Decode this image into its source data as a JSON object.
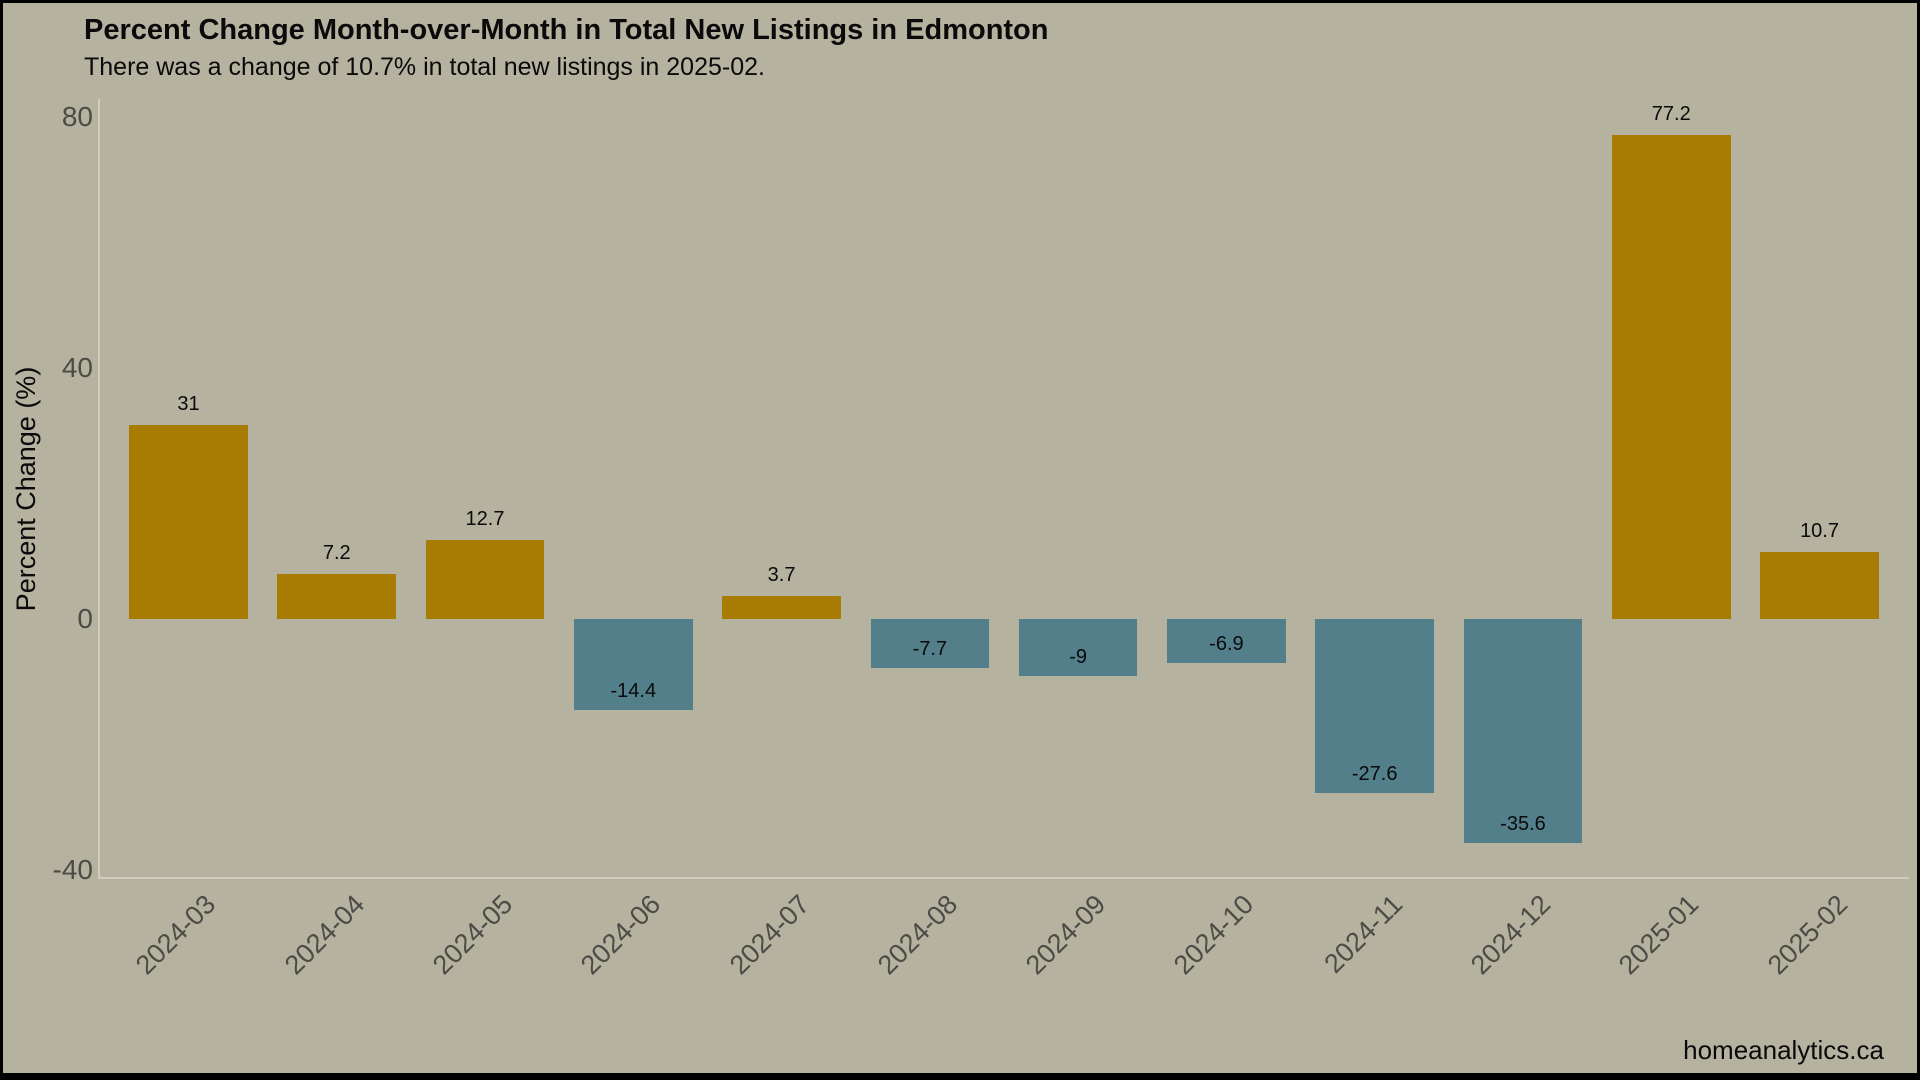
{
  "header": {
    "title": "Percent Change Month-over-Month in Total New Listings in Edmonton",
    "subtitle": "There was a change of 10.7% in total new listings in 2025-02."
  },
  "footer": {
    "watermark": "homeanalytics.ca"
  },
  "chart_data": {
    "type": "bar",
    "title": "Percent Change Month-over-Month in Total New Listings in Edmonton",
    "subtitle": "There was a change of 10.7% in total new listings in 2025-02.",
    "categories": [
      "2024-03",
      "2024-04",
      "2024-05",
      "2024-06",
      "2024-07",
      "2024-08",
      "2024-09",
      "2024-10",
      "2024-11",
      "2024-12",
      "2025-01",
      "2025-02"
    ],
    "values": [
      31,
      7.2,
      12.7,
      -14.4,
      3.7,
      -7.7,
      -9,
      -6.9,
      -27.6,
      -35.6,
      77.2,
      10.7
    ],
    "bar_labels": [
      "31",
      "7.2",
      "12.7",
      "-14.4",
      "3.7",
      "-7.7",
      "-9",
      "-6.9",
      "-27.6",
      "-35.6",
      "77.2",
      "10.7"
    ],
    "xlabel": "",
    "ylabel": "Percent Change (%)",
    "ylim": [
      -41.2,
      82.8
    ],
    "yticks": [
      80,
      40,
      0,
      -40
    ],
    "grid": false,
    "legend": false,
    "label_position": "positive above bar, negative inside bar near bottom",
    "colors": {
      "positive_bar": "#a87c03",
      "negative_bar": "#537f8b",
      "background": "#b5b2a0",
      "axis_line": "#d1cebf",
      "tick_text": "#4c4b46",
      "label_text": "#0a0a0a",
      "frame": "#000000"
    }
  }
}
